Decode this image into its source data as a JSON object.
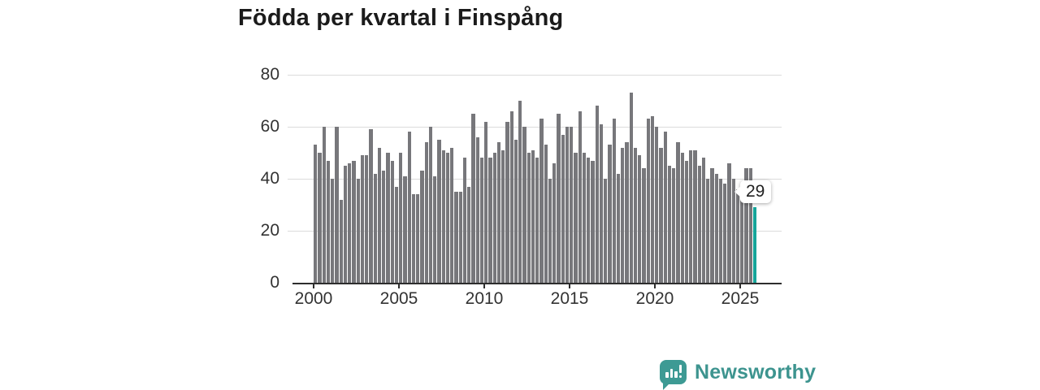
{
  "title": "Födda per kvartal i Finspång",
  "chart_data": {
    "type": "bar",
    "title": "Födda per kvartal i Finspång",
    "x_start": "2000 Q1",
    "x_end": "2025 Q4",
    "frequency": "quarterly",
    "grid": true,
    "ylim": [
      0,
      80
    ],
    "y_ticks": [
      0,
      20,
      40,
      60,
      80
    ],
    "x_tick_years": [
      2000,
      2005,
      2010,
      2015,
      2020,
      2025
    ],
    "values": [
      53,
      50,
      60,
      47,
      40,
      60,
      32,
      45,
      46,
      47,
      40,
      49,
      49,
      59,
      42,
      52,
      43,
      50,
      47,
      37,
      50,
      41,
      58,
      34,
      34,
      43,
      54,
      60,
      41,
      55,
      51,
      50,
      52,
      35,
      35,
      48,
      37,
      65,
      56,
      48,
      62,
      48,
      50,
      54,
      51,
      62,
      66,
      55,
      70,
      60,
      50,
      51,
      48,
      63,
      53,
      40,
      46,
      65,
      57,
      60,
      60,
      50,
      66,
      50,
      48,
      47,
      68,
      61,
      40,
      53,
      63,
      42,
      52,
      54,
      73,
      52,
      49,
      44,
      63,
      64,
      60,
      52,
      58,
      45,
      44,
      54,
      50,
      47,
      51,
      51,
      45,
      48,
      40,
      44,
      42,
      40,
      38,
      46,
      40,
      36,
      34,
      44,
      44,
      29
    ],
    "highlight": {
      "index": 103,
      "value": 29,
      "label": "29"
    },
    "colors": {
      "bar": "#77777b",
      "highlight": "#16a59a",
      "grid": "#dcdcdc",
      "axis": "#2e2e2e",
      "tick_text": "#333333",
      "title_text": "#1b1b1b"
    }
  },
  "annotation": {
    "label": "29"
  },
  "branding": {
    "name": "Newsworthy",
    "color": "#3d948f",
    "icon": "bar-chart-speech-bubble-icon"
  }
}
